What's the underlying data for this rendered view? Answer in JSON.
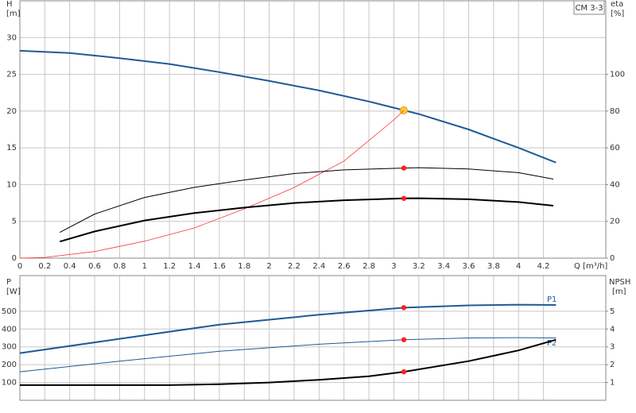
{
  "chart_data": [
    {
      "type": "line",
      "label_box": "CM 3-3",
      "y_label": "H",
      "y_unit": "[m]",
      "y2_label": "eta",
      "y2_unit": "[%]",
      "x_label": "Q [m³/h]",
      "xlim": [
        0,
        4.7
      ],
      "xticks": [
        0,
        0.2,
        0.4,
        0.6,
        0.8,
        1.0,
        1.2,
        1.4,
        1.6,
        1.8,
        2.0,
        2.2,
        2.4,
        2.6,
        2.8,
        3.0,
        3.2,
        3.4,
        3.6,
        3.8,
        4.0,
        4.2
      ],
      "show_xtick_labels": true,
      "ylim": [
        0,
        35
      ],
      "yticks": [
        0,
        5,
        10,
        15,
        20,
        25,
        30
      ],
      "y2lim": [
        0,
        140
      ],
      "y2ticks": [
        0,
        20,
        40,
        60,
        80,
        100
      ],
      "grid": true,
      "series": [
        {
          "color": "#1f5a96",
          "line_width": 2,
          "x": [
            0,
            0.4,
            0.8,
            1.2,
            1.6,
            2.0,
            2.4,
            2.8,
            3.08,
            3.2,
            3.6,
            4.0,
            4.3
          ],
          "values": [
            28.2,
            27.9,
            27.2,
            26.4,
            25.3,
            24.1,
            22.8,
            21.3,
            20.1,
            19.6,
            17.5,
            15.0,
            13.0
          ],
          "marker_index": 8,
          "marker_color": "#ffcc33"
        },
        {
          "color": "#ff3333",
          "line_width": 0.8,
          "x": [
            0,
            0.2,
            0.6,
            1.0,
            1.4,
            1.8,
            2.2,
            2.6,
            3.0,
            3.08
          ],
          "values": [
            0,
            0.1,
            0.9,
            2.3,
            4.1,
            6.7,
            9.6,
            13.2,
            18.8,
            20.1
          ]
        },
        {
          "color": "#000000",
          "line_width": 1,
          "axis": "y2",
          "x": [
            0.32,
            0.6,
            1.0,
            1.4,
            1.8,
            2.2,
            2.6,
            3.08,
            3.2,
            3.6,
            4.0,
            4.28
          ],
          "values": [
            14,
            24,
            33,
            38.5,
            42.5,
            46,
            48,
            49,
            49.2,
            48.5,
            46.5,
            43
          ],
          "marker_index": 7,
          "marker_color": "#ff2020"
        },
        {
          "color": "#000000",
          "line_width": 2,
          "axis": "y2",
          "x": [
            0.32,
            0.6,
            1.0,
            1.4,
            1.8,
            2.2,
            2.6,
            3.08,
            3.2,
            3.6,
            4.0,
            4.28
          ],
          "values": [
            9,
            14.5,
            20.5,
            24.5,
            27.5,
            30,
            31.5,
            32.5,
            32.6,
            32,
            30.5,
            28.5
          ],
          "marker_index": 7,
          "marker_color": "#ff2020"
        }
      ]
    },
    {
      "type": "line",
      "y_label": "P",
      "y_unit": "[W]",
      "y2_label": "NPSH",
      "y2_unit": "[m]",
      "xlim": [
        0,
        4.7
      ],
      "xticks": [
        0,
        0.2,
        0.4,
        0.6,
        0.8,
        1.0,
        1.2,
        1.4,
        1.6,
        1.8,
        2.0,
        2.2,
        2.4,
        2.6,
        2.8,
        3.0,
        3.2,
        3.4,
        3.6,
        3.8,
        4.0,
        4.2
      ],
      "show_xtick_labels": false,
      "ylim": [
        0,
        700
      ],
      "yticks": [
        100,
        200,
        300,
        400,
        500
      ],
      "y2lim": [
        0,
        7
      ],
      "y2ticks": [
        1,
        2,
        3,
        4,
        5
      ],
      "grid": true,
      "series": [
        {
          "name": "P1",
          "color": "#1f5a96",
          "line_width": 2,
          "x": [
            0,
            0.8,
            1.6,
            2.4,
            3.08,
            3.6,
            4.0,
            4.3
          ],
          "values": [
            265,
            345,
            425,
            480,
            520,
            533,
            537,
            535
          ],
          "marker_index": 4,
          "marker_color": "#ff2020"
        },
        {
          "name": "P2",
          "color": "#1f5a96",
          "line_width": 1,
          "x": [
            0,
            0.8,
            1.6,
            2.4,
            3.08,
            3.6,
            4.0,
            4.3
          ],
          "values": [
            160,
            220,
            275,
            315,
            340,
            350,
            352,
            350
          ],
          "marker_index": 4,
          "marker_color": "#ff2020"
        },
        {
          "color": "#000000",
          "line_width": 2,
          "axis": "y2",
          "x": [
            0,
            1.2,
            1.6,
            2.0,
            2.4,
            2.8,
            3.08,
            3.6,
            4.0,
            4.3
          ],
          "values": [
            0.85,
            0.85,
            0.9,
            1.0,
            1.15,
            1.35,
            1.6,
            2.2,
            2.8,
            3.4
          ],
          "marker_index": 6,
          "marker_color": "#ff2020"
        }
      ]
    }
  ]
}
